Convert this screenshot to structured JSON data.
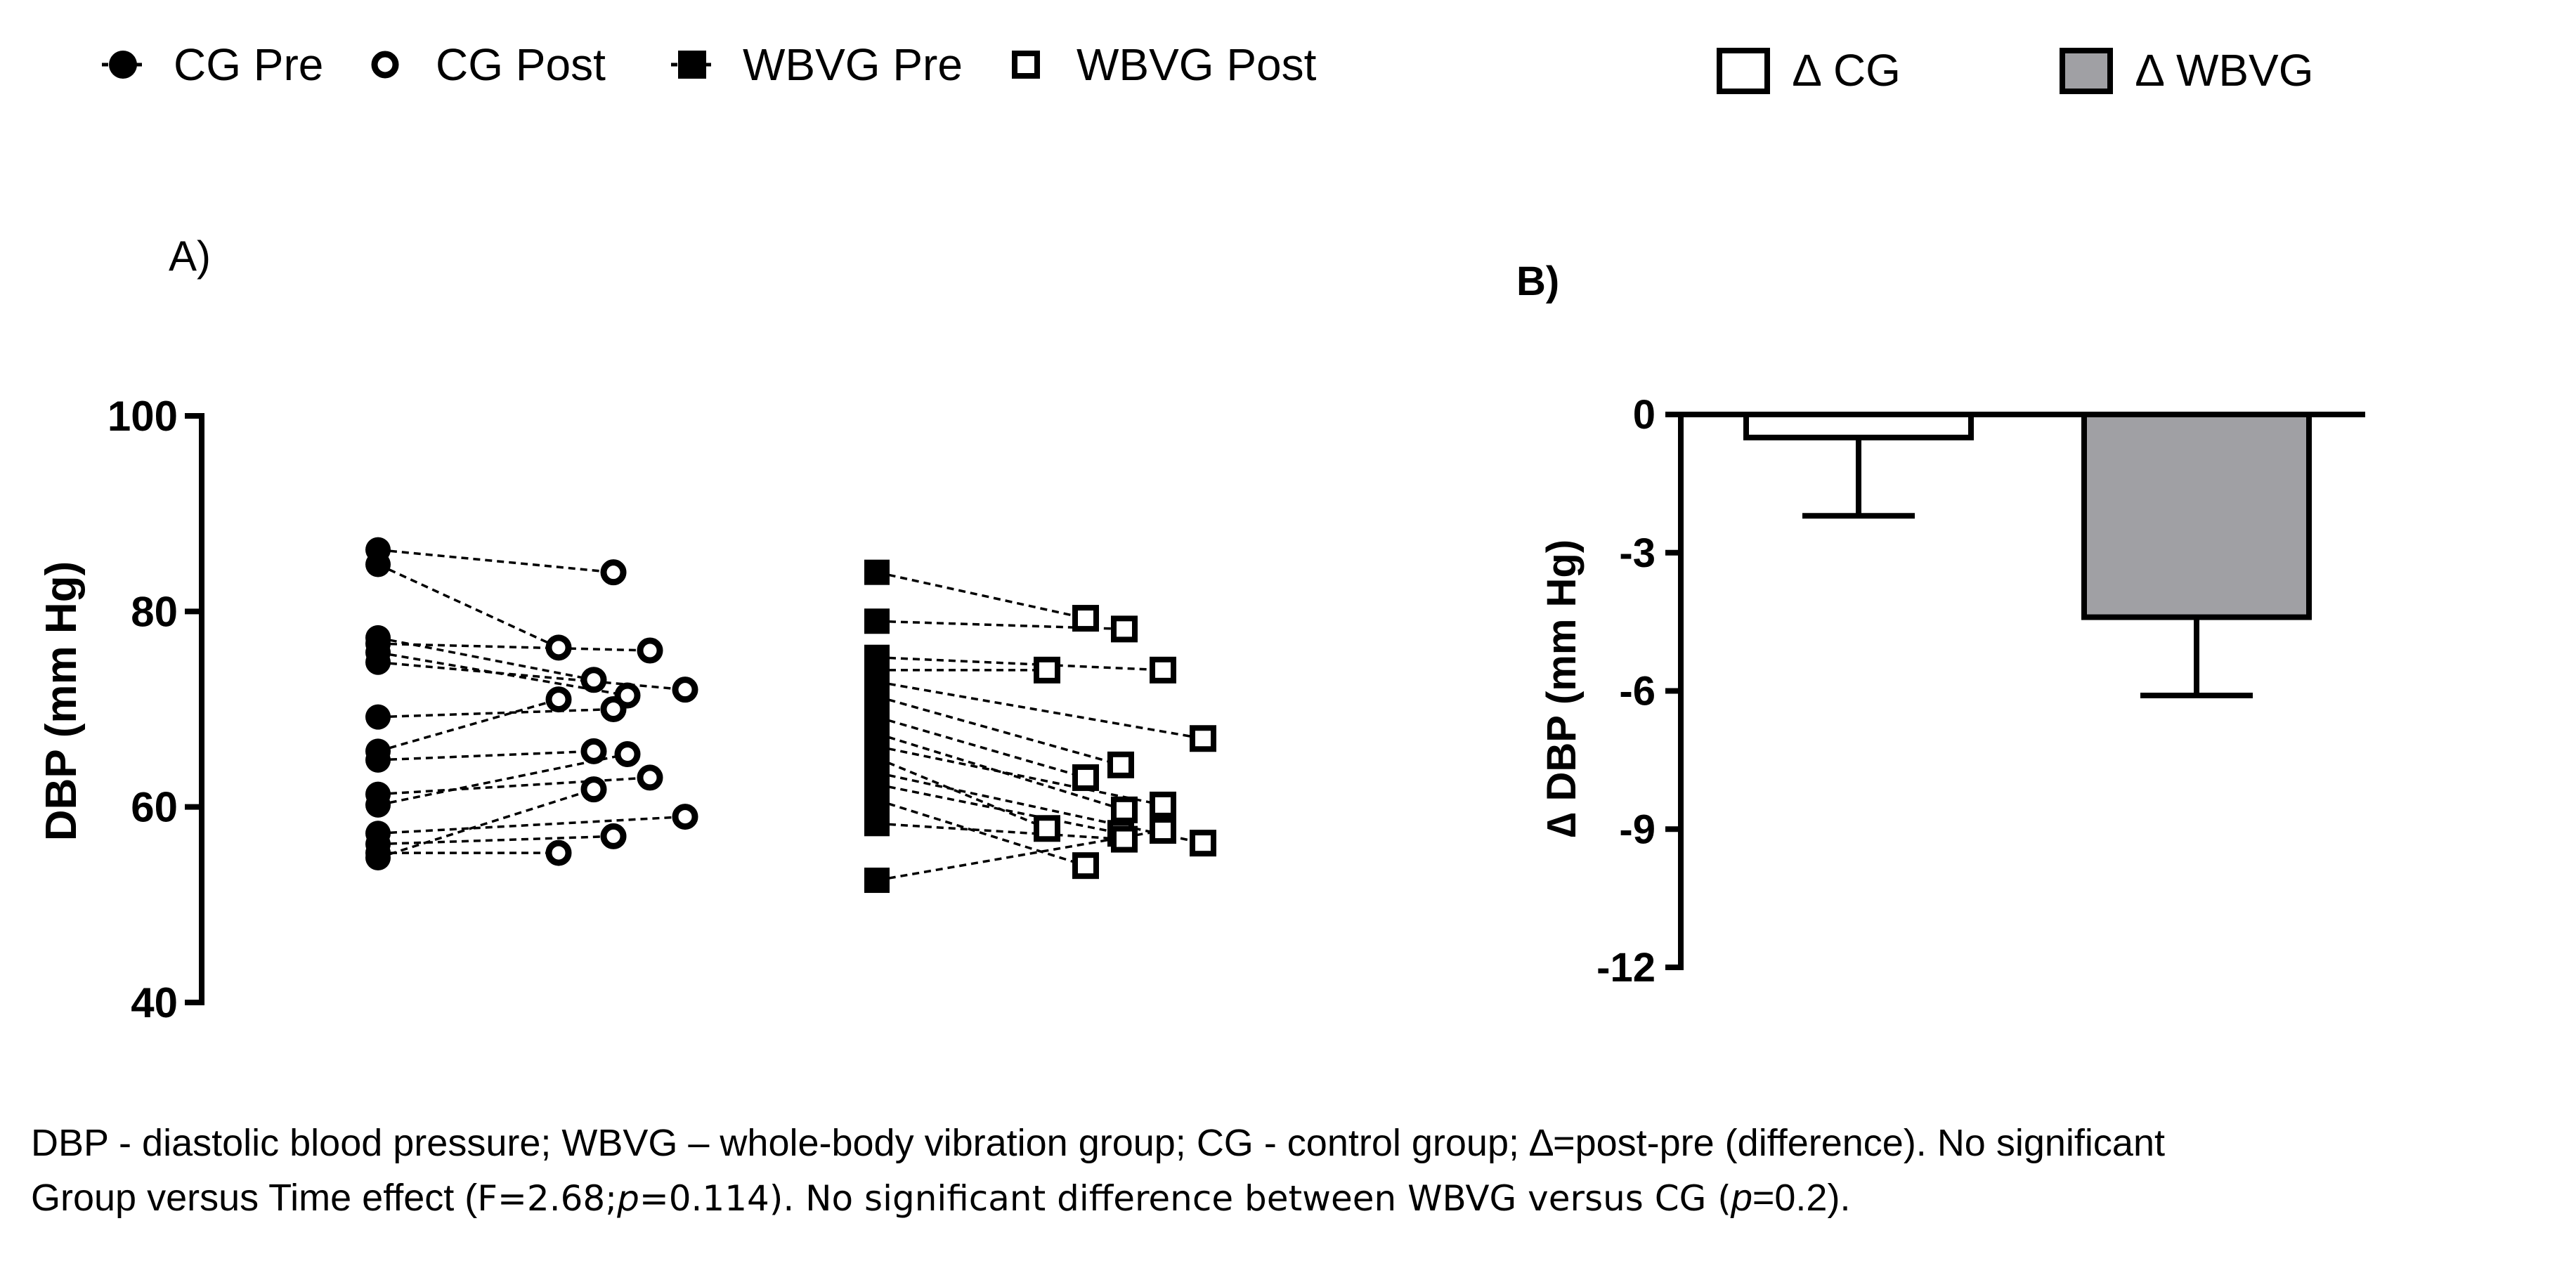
{
  "legend_a": [
    {
      "label": "CG Pre",
      "marker": "circle-filled"
    },
    {
      "label": "CG Post",
      "marker": "circle-open"
    },
    {
      "label": "WBVG Pre",
      "marker": "square-filled"
    },
    {
      "label": "WBVG Post",
      "marker": "square-open"
    }
  ],
  "legend_b": [
    {
      "label": "∆ CG",
      "color": "#ffffff"
    },
    {
      "label": "∆ WBVG",
      "color": "#a0a0a4"
    }
  ],
  "chart_data": [
    {
      "panel_label": "A)",
      "type": "scatter",
      "ylabel": "DBP (mm Hg)",
      "ylim": [
        40,
        100
      ],
      "yticks": [
        "40",
        "60",
        "80",
        "100"
      ],
      "grid": false,
      "legend_position": "top-left",
      "groups": [
        {
          "name": "CG",
          "pairs": [
            [
              86.3,
              84.0
            ],
            [
              84.8,
              76.3
            ],
            [
              77.3,
              73.0
            ],
            [
              76.7,
              76.0
            ],
            [
              75.8,
              71.4
            ],
            [
              74.8,
              72.0
            ],
            [
              69.2,
              70.0
            ],
            [
              65.7,
              71.0
            ],
            [
              64.8,
              65.7
            ],
            [
              61.3,
              63.0
            ],
            [
              60.2,
              65.4
            ],
            [
              57.3,
              59.0
            ],
            [
              56.2,
              57.0
            ],
            [
              55.3,
              55.3
            ],
            [
              54.8,
              61.8
            ]
          ]
        },
        {
          "name": "WBVG",
          "pairs": [
            [
              84.0,
              79.3
            ],
            [
              79.0,
              78.2
            ],
            [
              75.3,
              74.0
            ],
            [
              74.0,
              74.0
            ],
            [
              72.8,
              67.0
            ],
            [
              71.3,
              64.3
            ],
            [
              69.2,
              63.0
            ],
            [
              67.5,
              59.7
            ],
            [
              66.2,
              60.2
            ],
            [
              65.0,
              57.8
            ],
            [
              63.5,
              56.3
            ],
            [
              62.3,
              57.3
            ],
            [
              60.7,
              54.0
            ],
            [
              58.3,
              56.7
            ],
            [
              52.5,
              57.6
            ]
          ]
        }
      ]
    },
    {
      "panel_label": "B)",
      "type": "bar",
      "ylabel": "∆ DBP (mm Hg)",
      "ylim": [
        -12,
        0
      ],
      "yticks": [
        "0",
        "-3",
        "-6",
        "-9",
        "-12"
      ],
      "grid": false,
      "categories": [
        "∆ CG",
        "∆ WBVG"
      ],
      "values": [
        -0.5,
        -4.4
      ],
      "errors": [
        1.7,
        1.7
      ],
      "colors": [
        "#ffffff",
        "#a0a0a4"
      ]
    }
  ],
  "caption": {
    "line1": "DBP - diastolic blood pressure; WBVG – whole-body vibration group; CG - control group; ∆=post-pre (difference). No significant",
    "line2_a": "Group versus Time effect (",
    "line2_stat": "F=2.68;",
    "line2_p1": "p",
    "line2_stat2": "=0.114). No significant difference between WBVG versus CG (",
    "line2_p2": "p",
    "line2_end": "=0.2)."
  }
}
